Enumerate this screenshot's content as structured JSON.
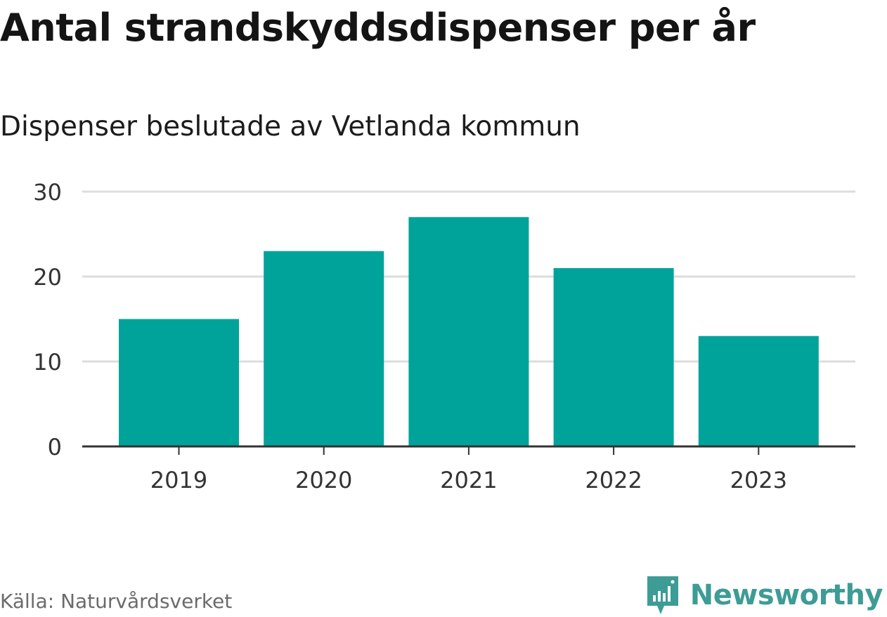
{
  "title": "Antal strandskyddsdispenser per år",
  "subtitle": "Dispenser beslutade av Vetlanda kommun",
  "source": "Källa: Naturvårdsverket",
  "brand": {
    "name": "Newsworthy",
    "icon": "newsworthy-logo-icon"
  },
  "colors": {
    "bar": "#00a39a",
    "grid": "#dddddd",
    "axis": "#333333",
    "brand": "#3d9c95"
  },
  "chart_data": {
    "type": "bar",
    "title": "Antal strandskyddsdispenser per år",
    "subtitle": "Dispenser beslutade av Vetlanda kommun",
    "categories": [
      "2019",
      "2020",
      "2021",
      "2022",
      "2023"
    ],
    "values": [
      15,
      23,
      27,
      21,
      13
    ],
    "xlabel": "",
    "ylabel": "",
    "ylim": [
      0,
      30
    ],
    "yticks": [
      0,
      10,
      20,
      30
    ],
    "grid": true,
    "legend": "none"
  }
}
